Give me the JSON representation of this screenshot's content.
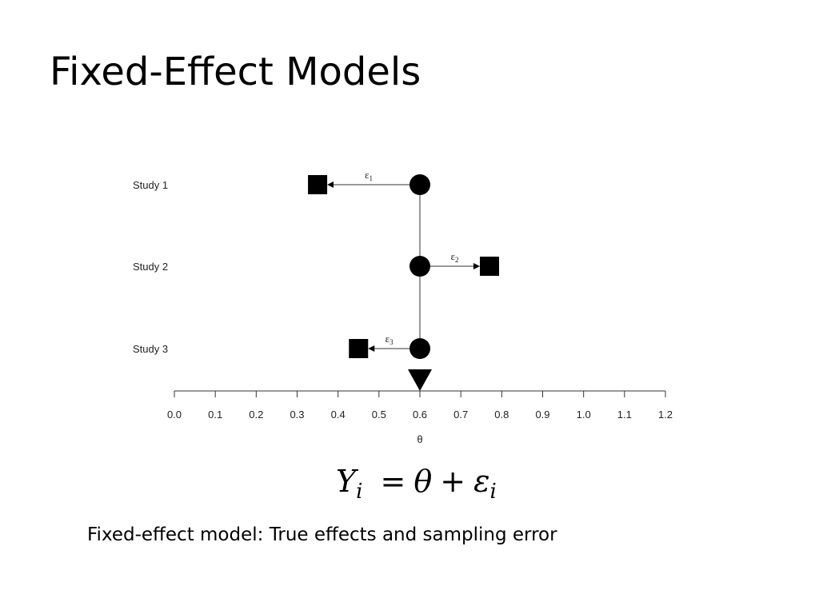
{
  "slide": {
    "title": "Fixed-Effect Models",
    "caption": "Fixed-effect model: True effects and sampling error"
  },
  "equation": {
    "lhs": "Y",
    "lhs_sub": "i",
    "equals": "=",
    "theta": "θ",
    "plus": "+",
    "epsilon": "ε",
    "epsilon_sub": "i"
  },
  "chart_data": {
    "type": "scatter",
    "xlabel": "θ",
    "xlim": [
      0.0,
      1.2
    ],
    "x_ticks": [
      "0.0",
      "0.1",
      "0.2",
      "0.3",
      "0.4",
      "0.5",
      "0.6",
      "0.7",
      "0.8",
      "0.9",
      "1.0",
      "1.1",
      "1.2"
    ],
    "true_effect": 0.6,
    "studies": [
      {
        "label": "Study 1",
        "true_effect": 0.6,
        "observed": 0.35,
        "error_symbol": "ε",
        "error_sub": "1"
      },
      {
        "label": "Study 2",
        "true_effect": 0.6,
        "observed": 0.77,
        "error_symbol": "ε",
        "error_sub": "2"
      },
      {
        "label": "Study 3",
        "true_effect": 0.6,
        "observed": 0.45,
        "error_symbol": "ε",
        "error_sub": "3"
      }
    ],
    "colors": {
      "markers": "#000000",
      "lines": "#333333"
    }
  }
}
